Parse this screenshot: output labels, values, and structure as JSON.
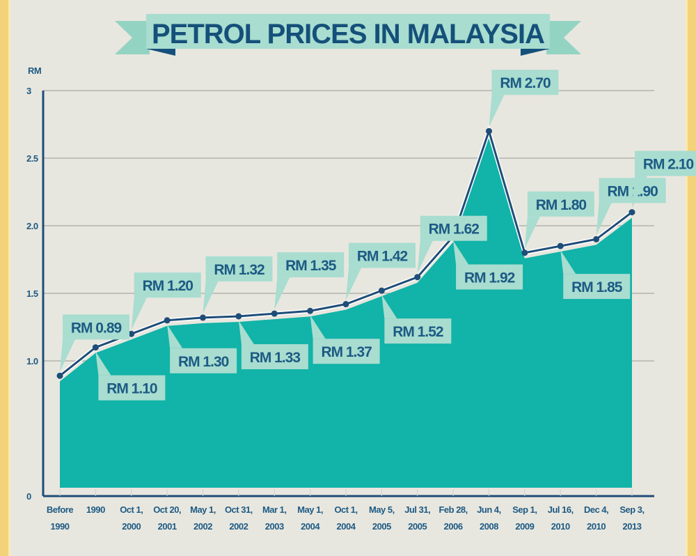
{
  "chart_data": {
    "type": "area",
    "title": "PETROL PRICES IN MALAYSIA",
    "ylabel": "RM",
    "xlabel": "",
    "ylim": [
      0,
      3
    ],
    "yticks": [
      "0",
      "1.0",
      "1.5",
      "2.0",
      "2.5",
      "3"
    ],
    "ytick_values": [
      0,
      1.0,
      1.5,
      2.0,
      2.5,
      3
    ],
    "grid": true,
    "categories": [
      [
        "Before",
        "1990"
      ],
      [
        "1990",
        ""
      ],
      [
        "Oct 1,",
        "2000"
      ],
      [
        "Oct 20,",
        "2001"
      ],
      [
        "May 1,",
        "2002"
      ],
      [
        "Oct 31,",
        "2002"
      ],
      [
        "Mar 1,",
        "2003"
      ],
      [
        "May 1,",
        "2004"
      ],
      [
        "Oct 1,",
        "2004"
      ],
      [
        "May 5,",
        "2005"
      ],
      [
        "Jul 31,",
        "2005"
      ],
      [
        "Feb 28,",
        "2006"
      ],
      [
        "Jun 4,",
        "2008"
      ],
      [
        "Sep 1,",
        "2009"
      ],
      [
        "Jul 16,",
        "2010"
      ],
      [
        "Dec 4,",
        "2010"
      ],
      [
        "Sep 3,",
        "2013"
      ]
    ],
    "values": [
      0.89,
      1.1,
      1.2,
      1.3,
      1.32,
      1.33,
      1.35,
      1.37,
      1.42,
      1.52,
      1.62,
      1.92,
      2.7,
      1.8,
      1.85,
      1.9,
      2.1
    ],
    "data_labels": [
      "RM 0.89",
      "RM 1.10",
      "RM 1.20",
      "RM 1.30",
      "RM 1.32",
      "RM 1.33",
      "RM 1.35",
      "RM 1.37",
      "RM 1.42",
      "RM 1.52",
      "RM 1.62",
      "RM 1.92",
      "RM 2.70",
      "RM 1.80",
      "RM 1.85",
      "RM 1.90",
      "RM 2.10"
    ],
    "label_side": [
      "above",
      "below",
      "above",
      "below",
      "above",
      "below",
      "above",
      "below",
      "above",
      "below",
      "above",
      "below",
      "above",
      "above",
      "below",
      "above",
      "above"
    ],
    "colors": {
      "fill": "#12b3a8",
      "line": "#1e4d78",
      "label_bg": "#a8ddd0",
      "text": "#1d5a84",
      "grid": "#a9a9a4"
    }
  }
}
